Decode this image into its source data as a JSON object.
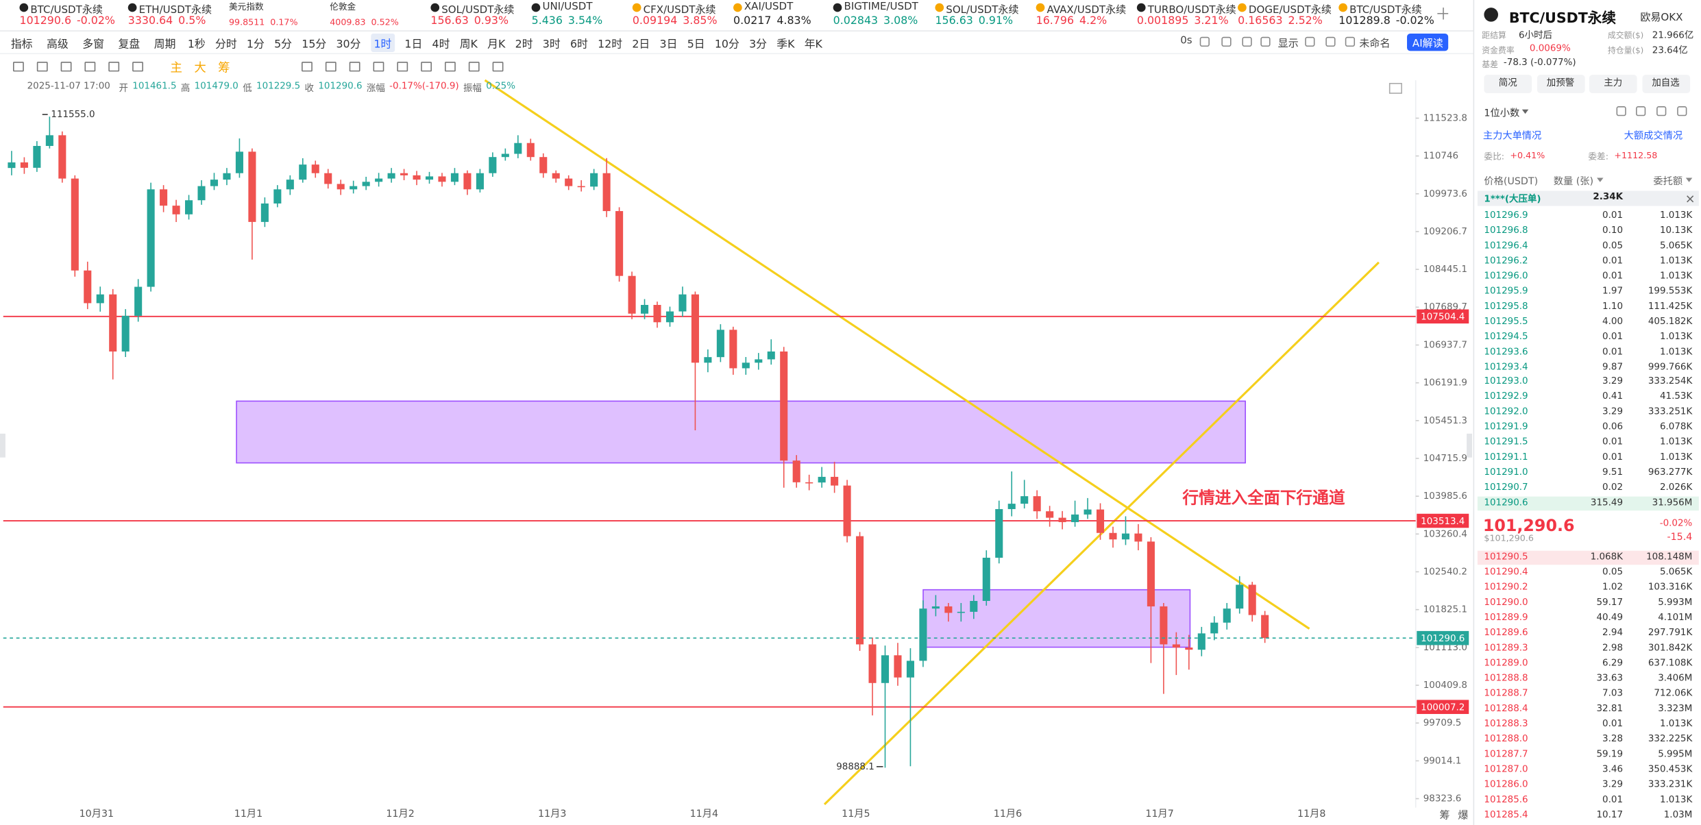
{
  "tabs": [
    {
      "name": "BTC/USDT永续",
      "price": "101290.6",
      "change": "-0.02%",
      "color": "#f23645"
    },
    {
      "name": "ETH/USDT永续",
      "price": "3330.64",
      "change": "0.5%",
      "color": "#f23645"
    },
    {
      "name": "美元指数",
      "price": "99.8511",
      "change": "0.17%",
      "color": "#f23645"
    },
    {
      "name": "伦敦金",
      "price": "4009.83",
      "change": "0.52%",
      "color": "#f23645"
    },
    {
      "name": "SOL/USDT永续",
      "price": "156.63",
      "change": "0.93%",
      "color": "#f23645"
    },
    {
      "name": "UNI/USDT",
      "price": "5.436",
      "change": "3.54%",
      "color": "#089981"
    },
    {
      "name": "CFX/USDT永续",
      "price": "0.09194",
      "change": "3.85%",
      "color": "#f23645"
    },
    {
      "name": "XAI/USDT",
      "price": "0.0217",
      "change": "4.83%",
      "color": "#222222"
    },
    {
      "name": "BIGTIME/USDT",
      "price": "0.02843",
      "change": "3.08%",
      "color": "#089981"
    },
    {
      "name": "SOL/USDT永续",
      "price": "156.63",
      "change": "0.91%",
      "color": "#089981"
    },
    {
      "name": "AVAX/USDT永续",
      "price": "16.796",
      "change": "4.2%",
      "color": "#f23645"
    },
    {
      "name": "TURBO/USDT永续",
      "price": "0.001895",
      "change": "3.21%",
      "color": "#f23645"
    },
    {
      "name": "DOGE/USDT永续",
      "price": "0.16563",
      "change": "2.52%",
      "color": "#f23645"
    },
    {
      "name": "BTC/USDT永续",
      "price": "101289.8",
      "change": "-0.02%",
      "color": "#222222"
    }
  ],
  "toolbar": {
    "main": [
      "指标",
      "高级",
      "多窗",
      "复盘",
      "周期"
    ],
    "periods": [
      "1秒",
      "分时",
      "1分",
      "5分",
      "15分",
      "30分",
      "1时",
      "1日",
      "4时",
      "周K",
      "月K",
      "2时",
      "3时",
      "6时",
      "12时",
      "2日",
      "3日",
      "5日",
      "10分",
      "3分",
      "季K",
      "年K"
    ],
    "right": [
      "0s",
      "显示",
      "未命名",
      "AI解读"
    ]
  },
  "indicators": [
    "主",
    "大",
    "筹"
  ],
  "ohlc_line": {
    "datetime": "2025-11-07 17:00",
    "items": [
      [
        "开",
        "101461.5"
      ],
      [
        "高",
        "101479.0"
      ],
      [
        "低",
        "101229.5"
      ],
      [
        "收",
        "101290.6"
      ],
      [
        "涨幅",
        "-0.17%(-170.9)"
      ],
      [
        "振幅",
        "0.25%"
      ]
    ]
  },
  "corner": [
    "筹",
    "爆"
  ],
  "chart_data": {
    "type": "candlestick",
    "log_scale": true,
    "grid": false,
    "up_color": "#26a69a",
    "down_color": "#ef5350",
    "open": [
      110500,
      110614,
      110504,
      110952,
      111172,
      110284,
      108423,
      107769,
      107944,
      106809,
      107517,
      108096,
      110064,
      109732,
      109556,
      109842,
      110130,
      110262,
      110394,
      110834,
      109402,
      109776,
      110064,
      110262,
      110570,
      110394,
      110174,
      110064,
      110130,
      110218,
      110284,
      110394,
      110350,
      110262,
      110328,
      110218,
      110394,
      110064,
      110394,
      110724,
      110790,
      111012,
      110724,
      110394,
      110284,
      110130,
      110120,
      110394,
      109622,
      108314,
      107560,
      107734,
      107389,
      107604,
      107944,
      106588,
      106698,
      107239,
      106478,
      106588,
      106654,
      106809,
      104674,
      104254,
      104250,
      104359,
      104191,
      103219,
      101172,
      100451,
      100968,
      100554,
      100865,
      101845,
      101886,
      101764,
      101784,
      101989,
      102808,
      103738,
      103841,
      103986,
      103696,
      103572,
      103488,
      103634,
      103730,
      103281,
      103157,
      103270,
      103116,
      101886,
      101172,
      101113,
      101072,
      101378,
      101580,
      101845,
      102295,
      101723
    ],
    "high": [
      110850,
      110720,
      111050,
      111555,
      111250,
      110350,
      108600,
      108100,
      108050,
      107650,
      108250,
      110200,
      110150,
      109850,
      109950,
      110250,
      110400,
      110500,
      111106,
      110900,
      109900,
      110150,
      110350,
      110700,
      110650,
      110480,
      110260,
      110240,
      110320,
      110400,
      110500,
      110480,
      110440,
      110420,
      110400,
      110500,
      110450,
      110480,
      110820,
      110900,
      111172,
      111100,
      110800,
      110450,
      110350,
      110250,
      110480,
      110702,
      109700,
      108400,
      107850,
      107800,
      107700,
      108100,
      108000,
      106850,
      107350,
      107300,
      106700,
      106780,
      107050,
      106900,
      104780,
      104400,
      104550,
      104650,
      104300,
      103300,
      101300,
      101150,
      101200,
      101100,
      102000,
      102100,
      101950,
      101950,
      102100,
      102950,
      103900,
      104464,
      104300,
      104100,
      103800,
      103700,
      103900,
      103950,
      103850,
      103400,
      103600,
      103450,
      103200,
      101950,
      101400,
      101350,
      101500,
      101700,
      101950,
      102458,
      102350,
      101800
    ],
    "low": [
      110350,
      110380,
      110420,
      110900,
      110200,
      108300,
      107650,
      107600,
      106258,
      106700,
      107400,
      108000,
      109600,
      109400,
      109450,
      109750,
      110050,
      110150,
      110300,
      108641,
      109300,
      109700,
      109950,
      110200,
      110300,
      110080,
      109950,
      109980,
      110050,
      110120,
      110200,
      110250,
      110150,
      110180,
      110120,
      110150,
      109950,
      110000,
      110320,
      110650,
      110700,
      110650,
      110300,
      110200,
      110050,
      110020,
      110050,
      109500,
      108200,
      107450,
      107450,
      107280,
      107300,
      107500,
      105262,
      106400,
      106600,
      106350,
      106350,
      106450,
      106550,
      104150,
      104150,
      104100,
      104150,
      104050,
      103100,
      101050,
      99850,
      98888.1,
      100400,
      98915,
      100750,
      101700,
      101600,
      101600,
      101650,
      101900,
      102700,
      103600,
      103750,
      103550,
      103400,
      103350,
      103400,
      103550,
      103150,
      103000,
      103050,
      102950,
      100823,
      100250,
      100600,
      100700,
      100950,
      101250,
      101450,
      101750,
      101600,
      101200
    ],
    "close": [
      110614,
      110504,
      110952,
      111172,
      110284,
      108423,
      107769,
      107944,
      106809,
      107517,
      108096,
      110064,
      109732,
      109556,
      109842,
      110130,
      110262,
      110394,
      110834,
      109402,
      109776,
      110064,
      110262,
      110570,
      110394,
      110174,
      110064,
      110130,
      110218,
      110284,
      110394,
      110350,
      110262,
      110328,
      110218,
      110394,
      110064,
      110394,
      110724,
      110790,
      111012,
      110724,
      110394,
      110284,
      110130,
      110120,
      110394,
      109622,
      108314,
      107560,
      107734,
      107389,
      107604,
      107944,
      106588,
      106698,
      107239,
      106478,
      106588,
      106654,
      106809,
      104674,
      104254,
      104250,
      104359,
      104191,
      103219,
      101172,
      100451,
      100968,
      100554,
      100865,
      101845,
      101886,
      101764,
      101784,
      101989,
      102808,
      103738,
      103841,
      103986,
      103696,
      103572,
      103488,
      103634,
      103730,
      103281,
      103157,
      103270,
      103116,
      101886,
      101172,
      101113,
      101072,
      101378,
      101580,
      101845,
      102295,
      101723,
      101290.6
    ],
    "ylim": [
      98160,
      112310
    ],
    "yticks": [
      111523.8,
      110746,
      109973.6,
      109206.7,
      108445.1,
      107689.7,
      106937.7,
      106191.9,
      105451.3,
      104715.9,
      103985.6,
      103260.4,
      102540.2,
      101825.1,
      {
        "value": 101113,
        "label": "101113.0"
      },
      100409.8,
      99709.5,
      99014.1,
      98323.6
    ],
    "x_labels": [
      "10月31",
      "11月1",
      "11月2",
      "11月3",
      "11月4",
      "11月5",
      "11月6",
      "11月7",
      "11月8"
    ],
    "price_lines": [
      {
        "value": 107504.4,
        "color": "#f23645"
      },
      {
        "value": 103513.4,
        "color": "#f23645"
      },
      {
        "value": 100007.2,
        "color": "#f23645"
      }
    ],
    "last_price": {
      "value": 101290.6,
      "color": "#26a69a"
    },
    "extremes": [
      {
        "value": 111555,
        "label": "111555.0"
      },
      {
        "value": 98888.1,
        "label": "98888.1"
      }
    ],
    "annotation": "行情进入全面下行通道"
  },
  "panel": {
    "symbol": "BTC/USDT永续",
    "exchange": "欧易OKX",
    "stats": [
      [
        "距结算",
        "6小时后"
      ],
      [
        "成交额($)",
        "21.966亿"
      ],
      [
        "资金费率",
        "0.0069%"
      ],
      [
        "持仓量($)",
        "23.64亿"
      ],
      [
        "基差",
        "-78.3 (-0.077%)"
      ]
    ],
    "buttons": [
      "简况",
      "加预警",
      "主力",
      "加自选"
    ],
    "decimals": "1位小数",
    "links": [
      "主力大单情况",
      "大额成交情况"
    ],
    "ratio": [
      [
        "委比:",
        "+0.41%"
      ],
      [
        "委差:",
        "+1112.58"
      ]
    ],
    "columns": [
      "价格(USDT)",
      "数量 (张)",
      "委托额"
    ],
    "big_order": [
      "1***(大压单)",
      "2.34K"
    ],
    "asks": [
      [
        "101296.9",
        "0.01",
        "1.013K"
      ],
      [
        "101296.8",
        "0.10",
        "10.13K"
      ],
      [
        "101296.4",
        "0.05",
        "5.065K"
      ],
      [
        "101296.2",
        "0.01",
        "1.013K"
      ],
      [
        "101296.0",
        "0.01",
        "1.013K"
      ],
      [
        "101295.9",
        "1.97",
        "199.553K"
      ],
      [
        "101295.8",
        "1.10",
        "111.425K"
      ],
      [
        "101295.5",
        "4.00",
        "405.182K"
      ],
      [
        "101294.5",
        "0.01",
        "1.013K"
      ],
      [
        "101293.6",
        "0.01",
        "1.013K"
      ],
      [
        "101293.4",
        "9.87",
        "999.766K"
      ],
      [
        "101293.0",
        "3.29",
        "333.254K"
      ],
      [
        "101292.9",
        "0.41",
        "41.53K"
      ],
      [
        "101292.0",
        "3.29",
        "333.251K"
      ],
      [
        "101291.9",
        "0.06",
        "6.078K"
      ],
      [
        "101291.5",
        "0.01",
        "1.013K"
      ],
      [
        "101291.1",
        "0.01",
        "1.013K"
      ],
      [
        "101291.0",
        "9.51",
        "963.277K"
      ],
      [
        "101290.7",
        "0.02",
        "2.026K"
      ],
      [
        "101290.6",
        "315.49",
        "31.956M"
      ]
    ],
    "last": "101,290.6",
    "last_change": "-0.02%",
    "last_usd": "$101,290.6",
    "last_diff": "-15.4",
    "bids": [
      [
        "101290.5",
        "1.068K",
        "108.148M"
      ],
      [
        "101290.4",
        "0.05",
        "5.065K"
      ],
      [
        "101290.2",
        "1.02",
        "103.316K"
      ],
      [
        "101290.0",
        "59.17",
        "5.993M"
      ],
      [
        "101289.9",
        "40.49",
        "4.101M"
      ],
      [
        "101289.6",
        "2.94",
        "297.791K"
      ],
      [
        "101289.3",
        "2.98",
        "301.842K"
      ],
      [
        "101289.0",
        "6.29",
        "637.108K"
      ],
      [
        "101288.8",
        "33.63",
        "3.406M"
      ],
      [
        "101288.7",
        "7.03",
        "712.06K"
      ],
      [
        "101288.4",
        "32.81",
        "3.323M"
      ],
      [
        "101288.3",
        "0.01",
        "1.013K"
      ],
      [
        "101288.0",
        "3.28",
        "332.225K"
      ],
      [
        "101287.7",
        "59.19",
        "5.995M"
      ],
      [
        "101287.0",
        "3.46",
        "350.453K"
      ],
      [
        "101286.0",
        "3.29",
        "333.231K"
      ],
      [
        "101285.6",
        "0.01",
        "1.013K"
      ],
      [
        "101285.4",
        "10.17",
        "1.03M"
      ]
    ]
  }
}
